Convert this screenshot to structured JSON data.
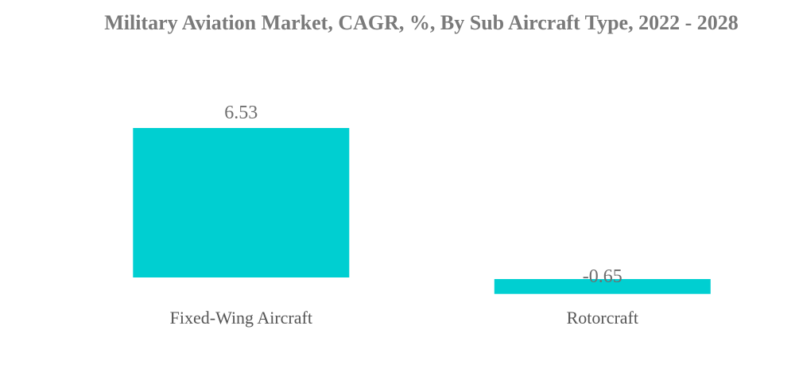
{
  "chart_data": {
    "type": "bar",
    "title": "Military Aviation Market, CAGR, %, By Sub Aircraft Type, 2022 - 2028",
    "categories": [
      "Fixed-Wing Aircraft",
      "Rotorcraft"
    ],
    "values": [
      6.53,
      -0.65
    ],
    "value_labels": [
      "6.53",
      "-0.65"
    ],
    "xlabel": "",
    "ylabel": "",
    "grid": false,
    "legend": "none",
    "bar_color": "#00cfd1"
  }
}
